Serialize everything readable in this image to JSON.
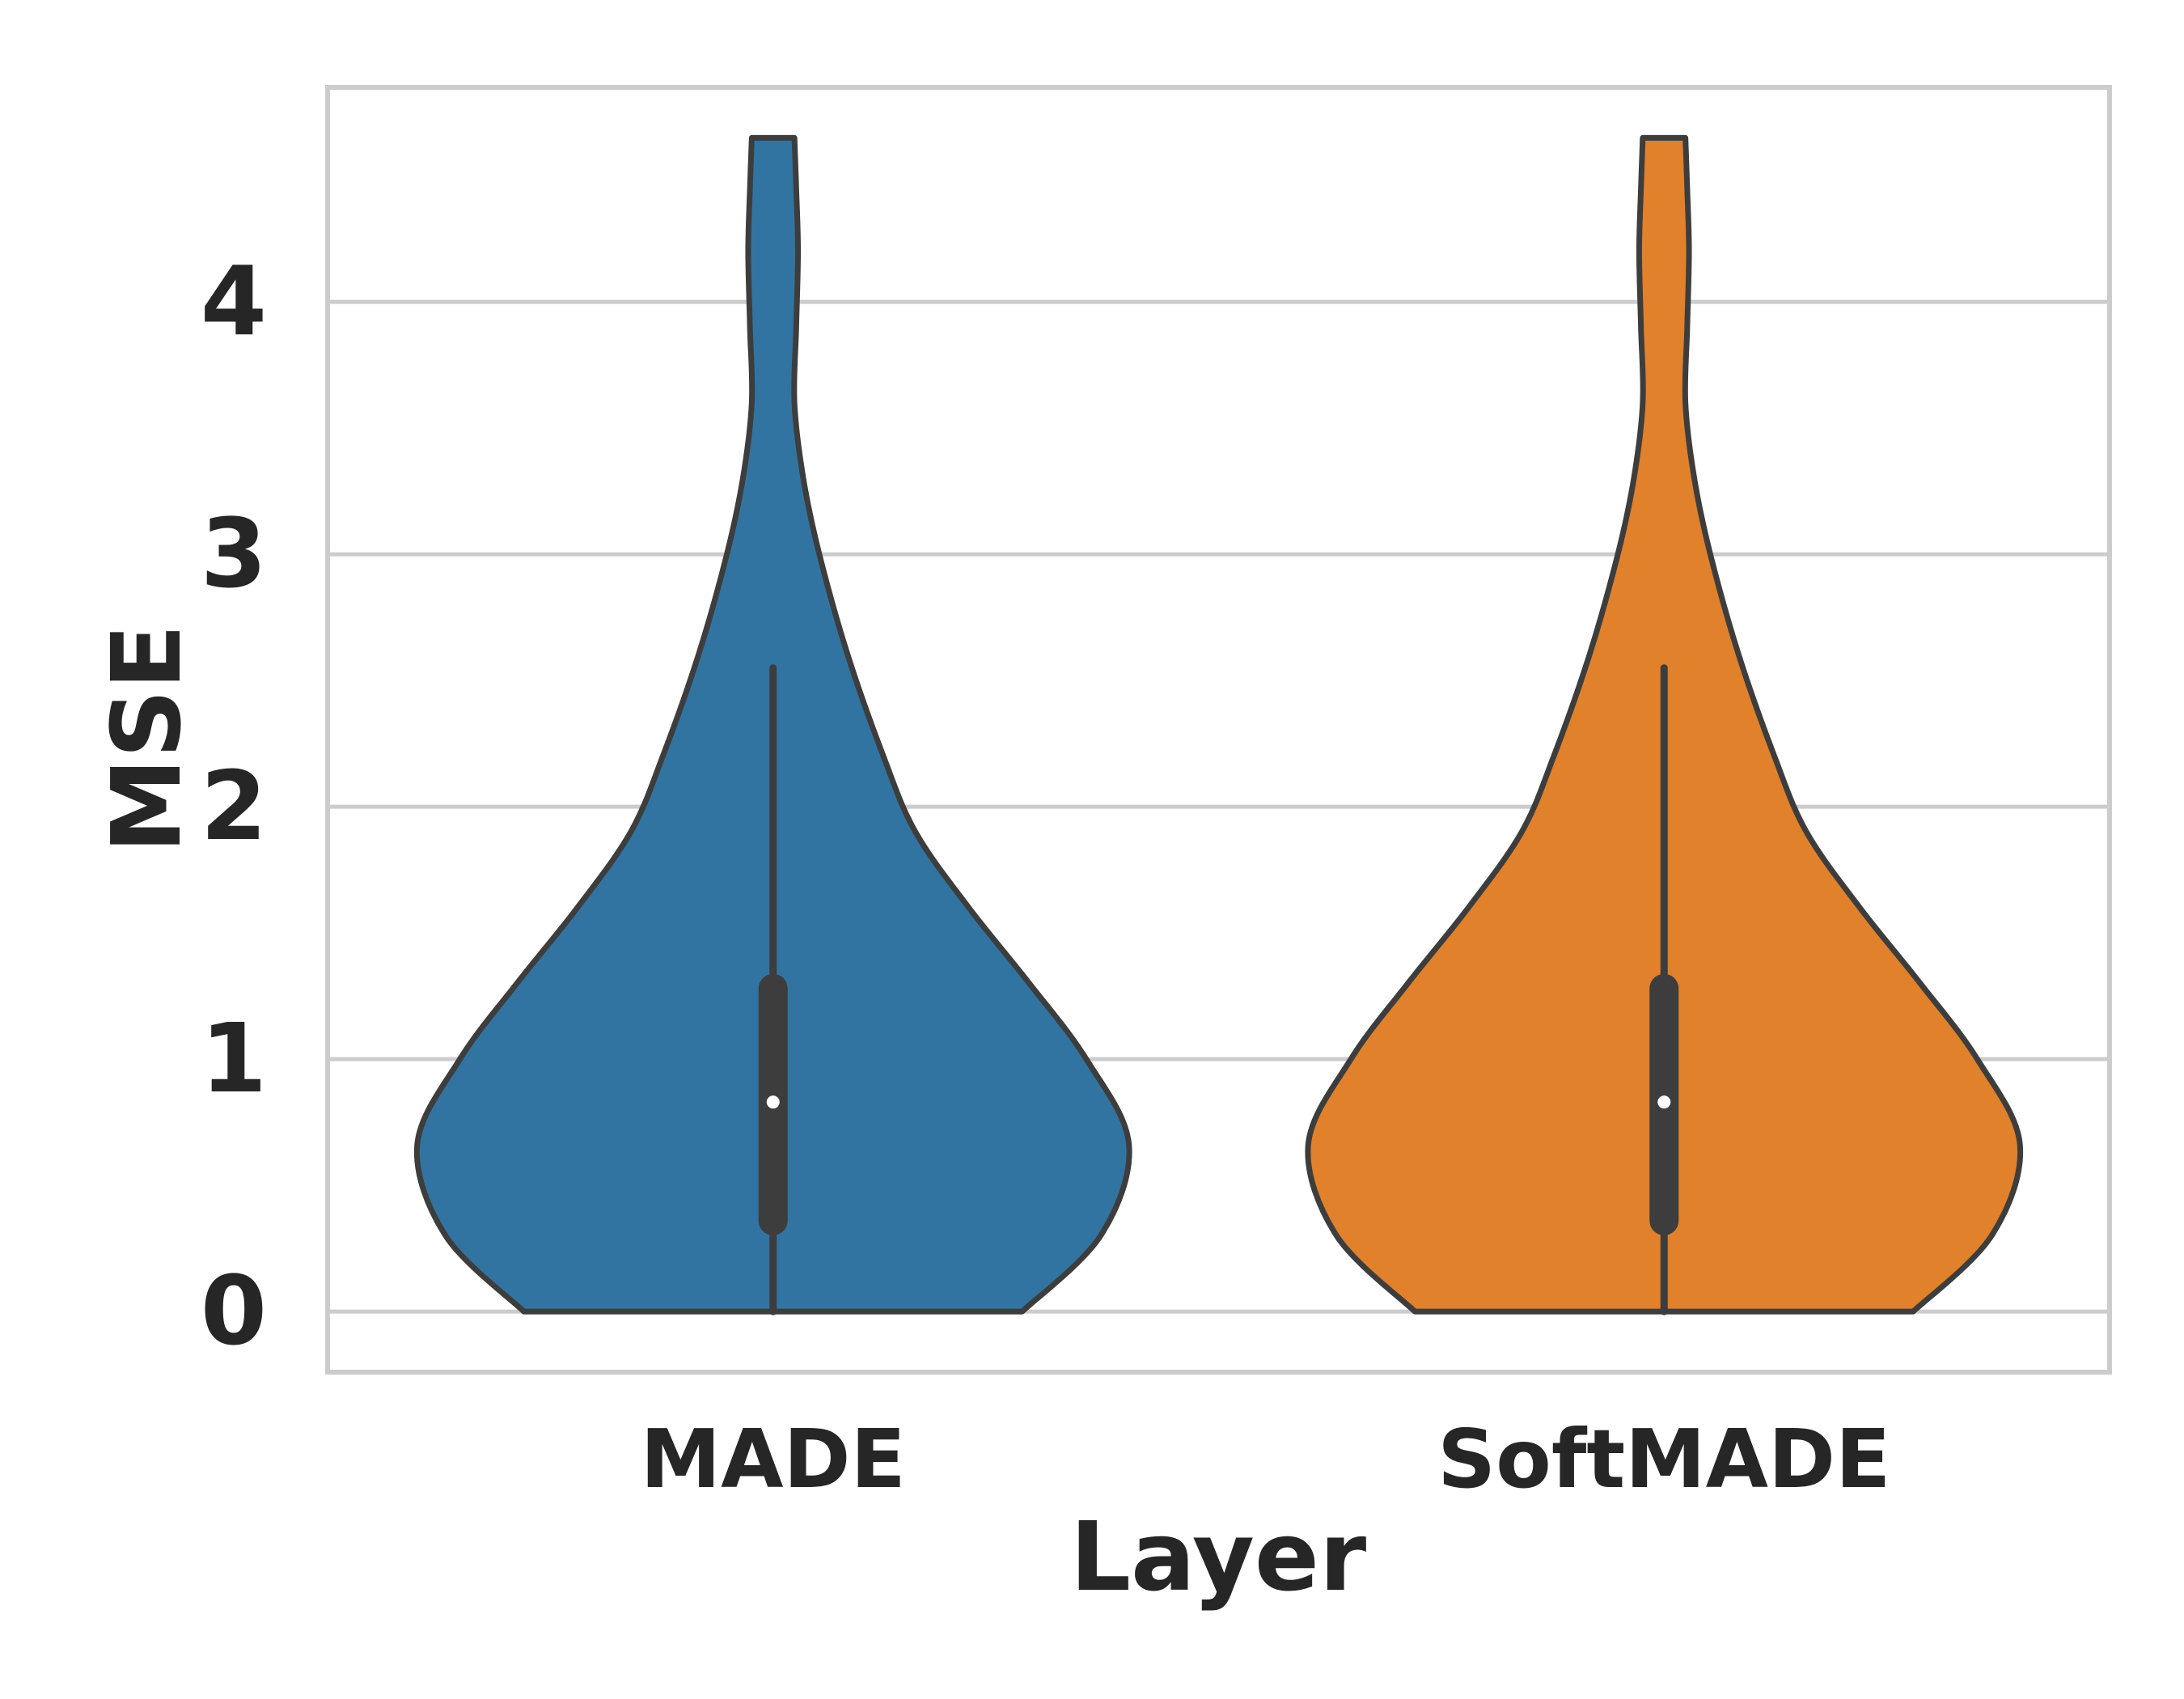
{
  "chart_data": {
    "type": "violin",
    "xlabel": "Layer",
    "ylabel": "MSE",
    "categories": [
      "MADE",
      "SoftMADE"
    ],
    "ylim": [
      -0.24,
      4.85
    ],
    "yticks": [
      0,
      1,
      2,
      3,
      4
    ],
    "grid": true,
    "series": [
      {
        "name": "MADE",
        "color": "#3274a1",
        "min": 0,
        "max": 4.65,
        "q1": 0.36,
        "median": 0.83,
        "q3": 1.28,
        "whisker_high": 2.55,
        "density": [
          [
            0,
            0.7
          ],
          [
            0.3,
            0.92
          ],
          [
            0.66,
            1.0
          ],
          [
            1.0,
            0.88
          ],
          [
            1.3,
            0.72
          ],
          [
            1.6,
            0.55
          ],
          [
            1.9,
            0.4
          ],
          [
            2.2,
            0.31
          ],
          [
            2.6,
            0.21
          ],
          [
            3.0,
            0.13
          ],
          [
            3.3,
            0.085
          ],
          [
            3.6,
            0.06
          ],
          [
            3.9,
            0.065
          ],
          [
            4.2,
            0.07
          ],
          [
            4.45,
            0.065
          ],
          [
            4.65,
            0.06
          ]
        ]
      },
      {
        "name": "SoftMADE",
        "color": "#e1812c",
        "min": 0,
        "max": 4.65,
        "q1": 0.36,
        "median": 0.83,
        "q3": 1.28,
        "whisker_high": 2.55,
        "density": [
          [
            0,
            0.7
          ],
          [
            0.3,
            0.92
          ],
          [
            0.66,
            1.0
          ],
          [
            1.0,
            0.88
          ],
          [
            1.3,
            0.72
          ],
          [
            1.6,
            0.55
          ],
          [
            1.9,
            0.4
          ],
          [
            2.2,
            0.31
          ],
          [
            2.6,
            0.21
          ],
          [
            3.0,
            0.13
          ],
          [
            3.3,
            0.085
          ],
          [
            3.6,
            0.06
          ],
          [
            3.9,
            0.065
          ],
          [
            4.2,
            0.07
          ],
          [
            4.45,
            0.065
          ],
          [
            4.65,
            0.06
          ]
        ]
      }
    ],
    "style": {
      "edge_color": "#3d3d3d",
      "grid_color": "#cccccc",
      "median_color": "#ffffff"
    }
  }
}
